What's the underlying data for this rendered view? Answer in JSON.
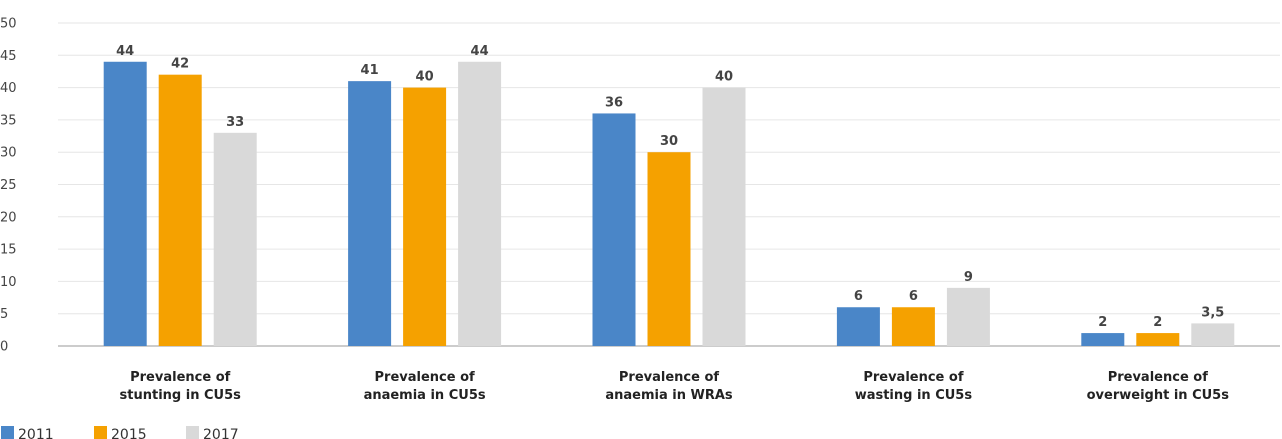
{
  "chart_data": {
    "type": "bar",
    "categories": [
      [
        "Prevalence of",
        "stunting in CU5s"
      ],
      [
        "Prevalence of",
        "anaemia in CU5s"
      ],
      [
        "Prevalence of",
        "anaemia in WRAs"
      ],
      [
        "Prevalence of",
        "wasting in CU5s"
      ],
      [
        "Prevalence of",
        "overweight in CU5s"
      ]
    ],
    "series": [
      {
        "name": "2011",
        "color": "#4a86c8",
        "values": [
          44,
          41,
          36,
          6,
          2
        ],
        "labels": [
          "44",
          "41",
          "36",
          "6",
          "2"
        ]
      },
      {
        "name": "2015",
        "color": "#f5a100",
        "values": [
          42,
          40,
          30,
          6,
          2
        ],
        "labels": [
          "42",
          "40",
          "30",
          "6",
          "2"
        ]
      },
      {
        "name": "2017",
        "color": "#d9d9d9",
        "values": [
          33,
          44,
          40,
          9,
          3.5
        ],
        "labels": [
          "33",
          "44",
          "40",
          "9",
          "3,5"
        ]
      }
    ],
    "ylim": [
      0,
      50
    ],
    "yticks": [
      0,
      5,
      10,
      15,
      20,
      25,
      30,
      35,
      40,
      45,
      50
    ],
    "grid": true,
    "legend_position": "bottom-left"
  }
}
